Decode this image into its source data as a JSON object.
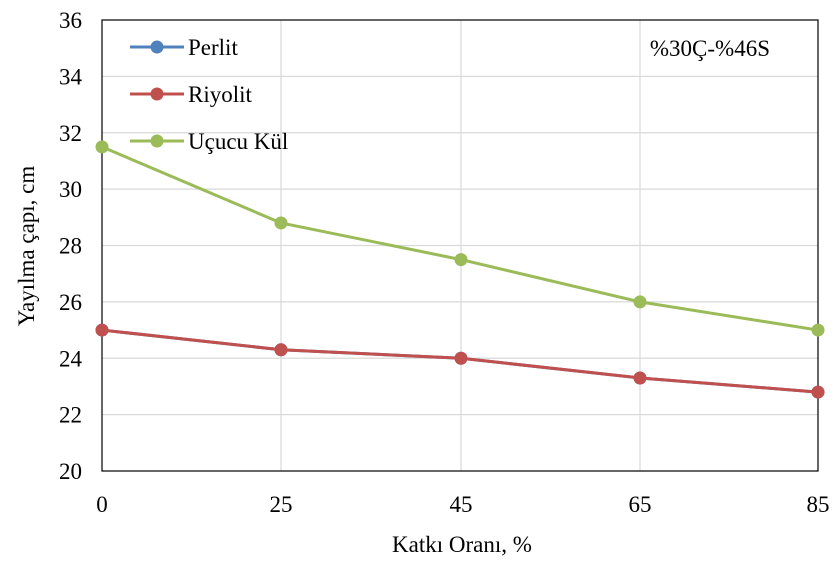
{
  "chart_data": {
    "type": "line",
    "x": [
      0,
      25,
      45,
      65,
      85
    ],
    "categories": [
      "0",
      "25",
      "45",
      "65",
      "85"
    ],
    "xlabel": "Katkı Oranı, %",
    "ylabel": "Yayılma çapı, cm",
    "ylim": [
      20,
      36
    ],
    "yticks": [
      20,
      22,
      24,
      26,
      28,
      30,
      32,
      34,
      36
    ],
    "grid": true,
    "legend_position": "top-left",
    "annotation": "%30Ç-%46S",
    "series": [
      {
        "name": "Perlit",
        "color": "#4F81BD",
        "values": [
          25.0,
          24.3,
          24.0,
          23.3,
          22.8
        ]
      },
      {
        "name": "Riyolit",
        "color": "#C0504D",
        "values": [
          25.0,
          24.3,
          24.0,
          23.3,
          22.8
        ]
      },
      {
        "name": "Uçucu Kül",
        "color": "#9BBB59",
        "values": [
          31.5,
          28.8,
          27.5,
          26.0,
          25.0
        ]
      }
    ]
  }
}
